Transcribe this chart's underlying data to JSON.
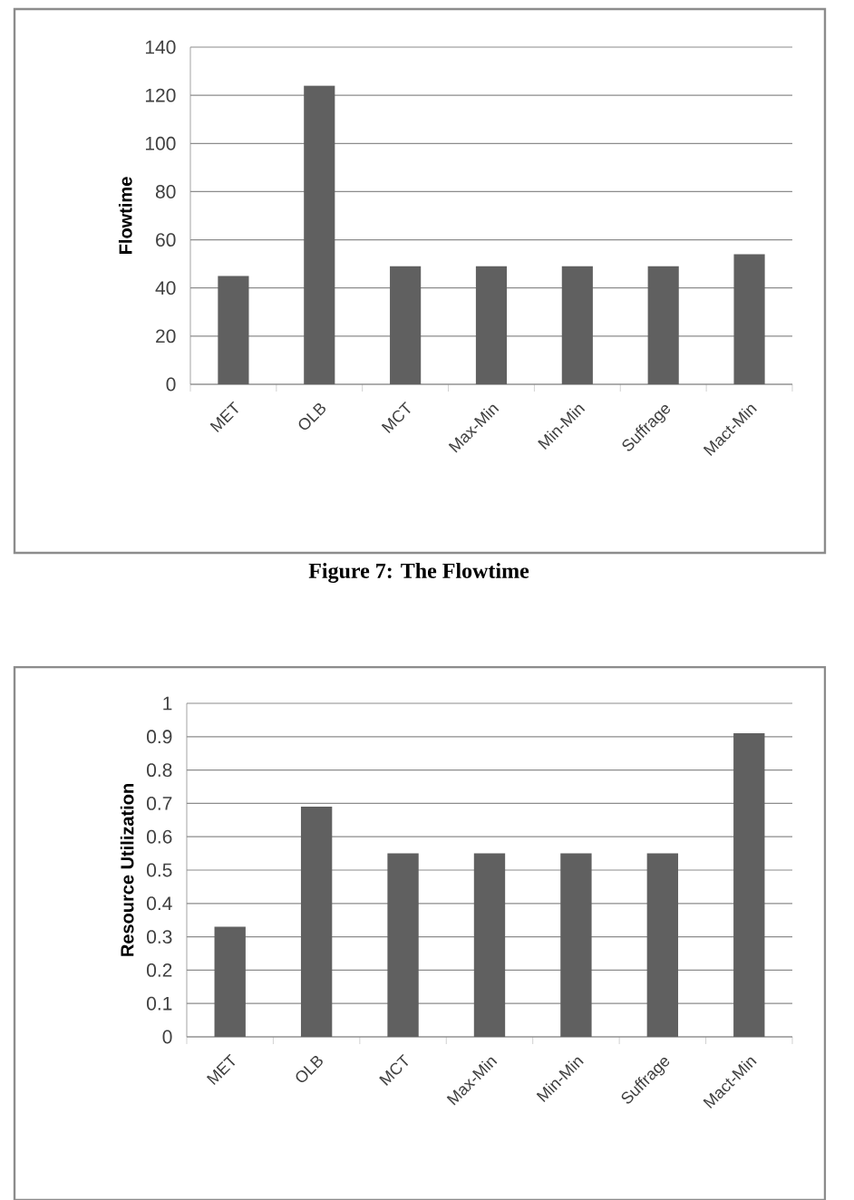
{
  "chart_data": [
    {
      "type": "bar",
      "categories": [
        "MET",
        "OLB",
        "MCT",
        "Max-Min",
        "Min-Min",
        "Suffrage",
        "Mact-Min"
      ],
      "values": [
        45,
        124,
        49,
        49,
        49,
        49,
        54
      ],
      "color": "#606060",
      "ylabel": "Flowtime",
      "ylim": [
        0,
        140
      ],
      "yticks": [
        0,
        20,
        40,
        60,
        80,
        100,
        120,
        140
      ],
      "grid": "y",
      "annotations": [
        "Figure 7: The Flowtime"
      ]
    },
    {
      "type": "bar",
      "categories": [
        "MET",
        "OLB",
        "MCT",
        "Max-Min",
        "Min-Min",
        "Suffrage",
        "Mact-Min"
      ],
      "values": [
        0.33,
        0.69,
        0.55,
        0.55,
        0.55,
        0.55,
        0.91
      ],
      "color": "#606060",
      "ylabel": "Resource Utilization",
      "ylim": [
        0,
        1
      ],
      "yticks": [
        0,
        0.1,
        0.2,
        0.3,
        0.4,
        0.5,
        0.6,
        0.7,
        0.8,
        0.9,
        1
      ],
      "grid": "y"
    }
  ]
}
